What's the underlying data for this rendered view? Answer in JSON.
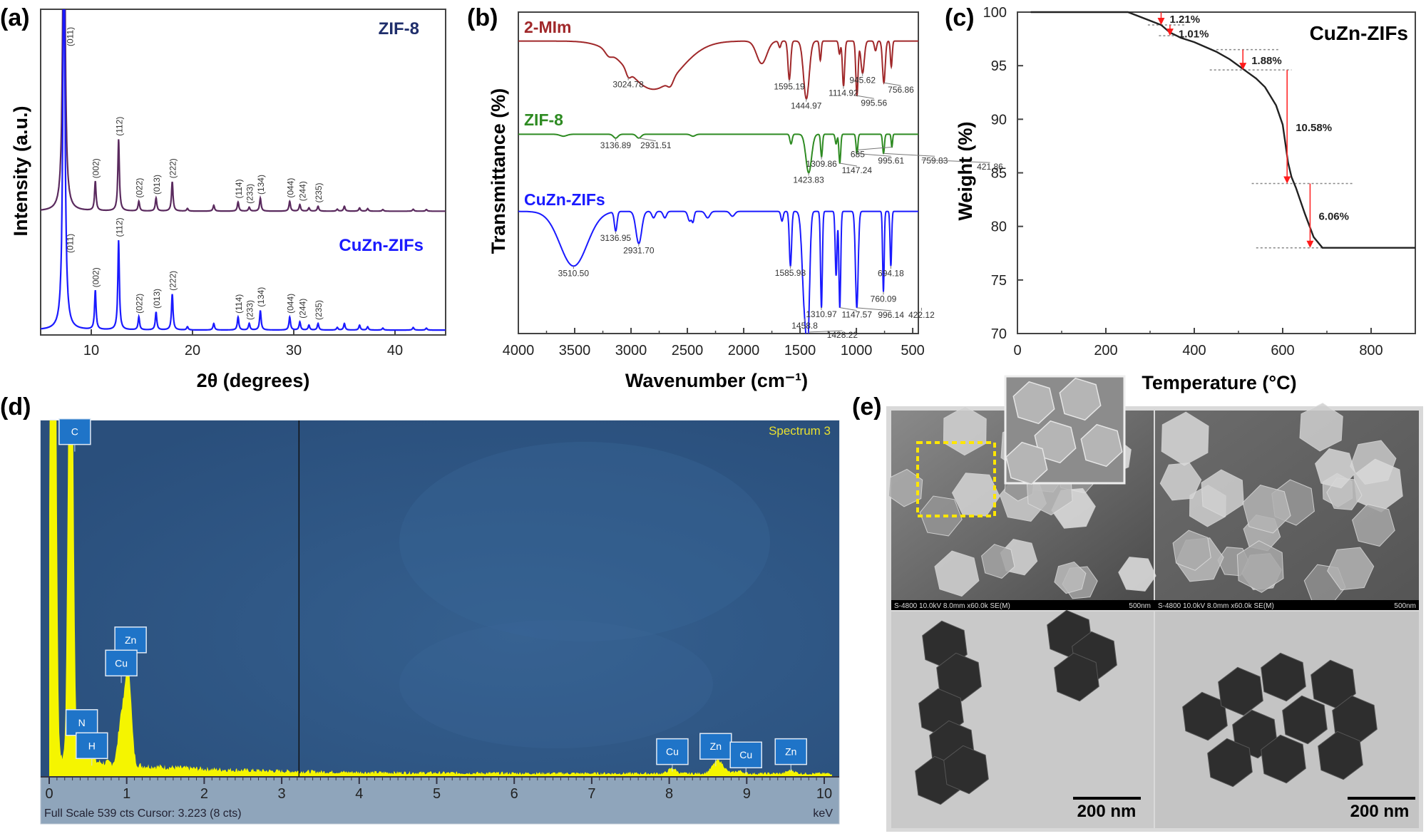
{
  "panels": {
    "a": "(a)",
    "b": "(b)",
    "c": "(c)",
    "d": "(d)",
    "e": "(e)"
  },
  "chart_data": [
    {
      "id": "a",
      "type": "line",
      "title": "",
      "xlabel": "2θ (degrees)",
      "ylabel": "Intensity (a.u.)",
      "xlim": [
        5,
        45
      ],
      "ylim": [
        0,
        100
      ],
      "xticks": [
        10,
        20,
        30,
        40
      ],
      "grid": false,
      "series": [
        {
          "name": "ZIF-8",
          "color": "#5a2a5e",
          "label_color": "#1f2e6b",
          "baseline": 38,
          "peaks": [
            [
              7.3,
              120,
              "(011)"
            ],
            [
              10.4,
              9,
              "(002)"
            ],
            [
              12.7,
              22,
              "(112)"
            ],
            [
              14.7,
              3,
              "(022)"
            ],
            [
              16.4,
              4,
              "(013)"
            ],
            [
              18.0,
              9,
              "(222)"
            ],
            [
              19.5,
              0.8,
              ""
            ],
            [
              22.1,
              1.8,
              ""
            ],
            [
              24.5,
              2.8,
              "(114)"
            ],
            [
              25.6,
              1.2,
              "(233)"
            ],
            [
              26.7,
              4,
              "(134)"
            ],
            [
              29.6,
              3,
              "(044)"
            ],
            [
              30.6,
              2,
              "(244)"
            ],
            [
              31.5,
              1,
              ""
            ],
            [
              32.4,
              1.5,
              "(235)"
            ],
            [
              34.3,
              0.6,
              ""
            ],
            [
              35.0,
              1.5,
              ""
            ],
            [
              36.5,
              1,
              ""
            ],
            [
              37.3,
              0.8,
              ""
            ],
            [
              38.8,
              0.5,
              ""
            ],
            [
              41.8,
              0.6,
              ""
            ],
            [
              43.1,
              0.5,
              ""
            ]
          ]
        },
        {
          "name": "CuZn-ZIFs",
          "color": "#1a1aff",
          "label_color": "#1a1aff",
          "baseline": 1.5,
          "peaks": [
            [
              7.3,
              120,
              "(011)"
            ],
            [
              10.4,
              12,
              "(002)"
            ],
            [
              12.7,
              27.5,
              "(112)"
            ],
            [
              14.7,
              4,
              "(022)"
            ],
            [
              16.4,
              5.5,
              "(013)"
            ],
            [
              18.0,
              11,
              "(222)"
            ],
            [
              19.5,
              1,
              ""
            ],
            [
              22.1,
              2,
              ""
            ],
            [
              24.5,
              4,
              "(114)"
            ],
            [
              25.6,
              2,
              "(233)"
            ],
            [
              26.7,
              6,
              "(134)"
            ],
            [
              29.6,
              4,
              "(044)"
            ],
            [
              30.6,
              2.5,
              "(244)"
            ],
            [
              31.5,
              1.5,
              ""
            ],
            [
              32.4,
              2,
              "(235)"
            ],
            [
              34.3,
              0.8,
              ""
            ],
            [
              35.0,
              2,
              ""
            ],
            [
              36.5,
              1.5,
              ""
            ],
            [
              37.3,
              1,
              ""
            ],
            [
              38.8,
              0.6,
              ""
            ],
            [
              41.8,
              0.8,
              ""
            ],
            [
              43.1,
              0.6,
              ""
            ]
          ]
        }
      ]
    },
    {
      "id": "b",
      "type": "line",
      "title": "",
      "xlabel": "Wavenumber (cm⁻¹)",
      "ylabel": "Transmittance (%)",
      "xlim": [
        4000,
        450
      ],
      "ylim": [
        0,
        100
      ],
      "xticks": [
        4000,
        3500,
        3000,
        2500,
        2000,
        1500,
        1000,
        500
      ],
      "grid": false,
      "series": [
        {
          "name": "2-MIm",
          "color": "#a0282a",
          "baseline": 91,
          "dips": [
            [
              2800,
              15,
              230
            ],
            [
              3024,
              2,
              20
            ],
            [
              3200,
              1.5,
              30
            ],
            [
              2650,
              2,
              25
            ],
            [
              1840,
              7,
              45
            ],
            [
              1680,
              2,
              10
            ],
            [
              1595,
              12,
              12
            ],
            [
              1444,
              18,
              25
            ],
            [
              1320,
              6,
              8
            ],
            [
              1150,
              4,
              8
            ],
            [
              1114,
              14,
              10
            ],
            [
              995,
              17,
              10
            ],
            [
              945,
              10,
              15
            ],
            [
              830,
              3,
              10
            ],
            [
              756,
              13,
              12
            ],
            [
              690,
              8,
              8
            ]
          ],
          "labels": [
            "3024.78",
            "1595.19",
            "1444.97",
            "1114.92",
            "995.56",
            "945.62",
            "756.86"
          ]
        },
        {
          "name": "ZIF-8",
          "color": "#2e8b22",
          "baseline": 62,
          "dips": [
            [
              3136,
              1.2,
              20
            ],
            [
              2931,
              1.2,
              20
            ],
            [
              3600,
              0.6,
              30
            ],
            [
              2450,
              0.6,
              20
            ],
            [
              1580,
              3,
              10
            ],
            [
              1423,
              12,
              25
            ],
            [
              1309,
              7,
              8
            ],
            [
              1180,
              3,
              8
            ],
            [
              1147,
              9,
              8
            ],
            [
              995,
              6,
              8
            ],
            [
              759,
              6,
              8
            ],
            [
              685,
              4,
              6
            ],
            [
              421,
              8,
              6
            ]
          ],
          "labels": [
            "3136.89",
            "2931.51",
            "1423.83",
            "1309.86",
            "1147.24",
            "995.61",
            "759.83",
            "685",
            "421.86"
          ]
        },
        {
          "name": "CuZn-ZIFs",
          "color": "#1a1aff",
          "baseline": 38,
          "dips": [
            [
              3510,
              17,
              120
            ],
            [
              3136,
              6,
              12
            ],
            [
              2931,
              10,
              25
            ],
            [
              2800,
              2,
              15
            ],
            [
              2700,
              2,
              15
            ],
            [
              2480,
              3,
              15
            ],
            [
              2450,
              3,
              10
            ],
            [
              2320,
              2,
              20
            ],
            [
              2100,
              1.5,
              20
            ],
            [
              1660,
              3,
              10
            ],
            [
              1585,
              17,
              10
            ],
            [
              1458,
              30,
              22
            ],
            [
              1428,
              28,
              15
            ],
            [
              1310,
              30,
              8
            ],
            [
              1180,
              20,
              8
            ],
            [
              1147,
              30,
              8
            ],
            [
              996,
              30,
              12
            ],
            [
              760,
              25,
              7
            ],
            [
              694,
              17,
              7
            ],
            [
              422,
              30,
              4
            ]
          ],
          "labels": [
            "3510.50",
            "3136.95",
            "2931.70",
            "1585.98",
            "1458.8",
            "1428.22",
            "1310.97",
            "1147.57",
            "996.14",
            "760.09",
            "694.18",
            "422.12"
          ]
        }
      ]
    },
    {
      "id": "c",
      "type": "line",
      "title": "CuZn-ZIFs",
      "xlabel": "Temperature (°C)",
      "ylabel": "Weight (%)",
      "xlim": [
        0,
        900
      ],
      "ylim": [
        70,
        100
      ],
      "xticks": [
        0,
        200,
        400,
        600,
        800
      ],
      "yticks": [
        70,
        75,
        80,
        85,
        90,
        95,
        100
      ],
      "grid": false,
      "series": [
        {
          "name": "CuZn-ZIFs",
          "color": "#222222",
          "points": [
            [
              30,
              100
            ],
            [
              250,
              100
            ],
            [
              300,
              99.2
            ],
            [
              325,
              98.8
            ],
            [
              345,
              98.1
            ],
            [
              370,
              97.6
            ],
            [
              400,
              97.2
            ],
            [
              450,
              96.3
            ],
            [
              480,
              95.6
            ],
            [
              510,
              94.7
            ],
            [
              540,
              93.8
            ],
            [
              560,
              93
            ],
            [
              585,
              91.3
            ],
            [
              600,
              89.5
            ],
            [
              607,
              87.5
            ],
            [
              612,
              86
            ],
            [
              620,
              84.6
            ],
            [
              630,
              83.6
            ],
            [
              650,
              81.2
            ],
            [
              670,
              79
            ],
            [
              690,
              78
            ],
            [
              900,
              78
            ]
          ]
        }
      ],
      "annotations": [
        {
          "label": "1.21%",
          "x": 325,
          "from": 100,
          "to": 98.8
        },
        {
          "label": "1.01%",
          "x": 345,
          "from": 98.8,
          "to": 97.8
        },
        {
          "label": "1.88%",
          "x": 510,
          "from": 96.5,
          "to": 94.6
        },
        {
          "label": "10.58%",
          "x": 610,
          "from": 94.6,
          "to": 84
        },
        {
          "label": "6.06%",
          "x": 662,
          "from": 84,
          "to": 78
        }
      ],
      "reference_lines": [
        [
          98.8,
          295,
          380
        ],
        [
          97.8,
          320,
          360
        ],
        [
          96.5,
          450,
          590
        ],
        [
          94.6,
          435,
          620
        ],
        [
          84,
          530,
          760
        ],
        [
          78,
          540,
          690
        ]
      ]
    },
    {
      "id": "d",
      "type": "area",
      "title": "Spectrum 3",
      "xlabel": "keV",
      "xlim": [
        0,
        10
      ],
      "ylim": [
        0,
        539
      ],
      "xticks": [
        0,
        1,
        2,
        3,
        4,
        5,
        6,
        7,
        8,
        9,
        10
      ],
      "footer": "Full Scale 539 cts Cursor: 3.223  (8 cts)",
      "cursor_kev": 3.223,
      "fill_color": "#f5f500",
      "background": "#2c5583",
      "peaks": [
        [
          0.05,
          1500,
          0.03
        ],
        [
          0.277,
          900,
          0.03
        ],
        [
          0.39,
          45,
          0.03
        ],
        [
          0.52,
          30,
          0.03
        ],
        [
          0.93,
          70,
          0.04
        ],
        [
          1.02,
          150,
          0.04
        ],
        [
          8.04,
          8,
          0.05
        ],
        [
          8.63,
          20,
          0.07
        ],
        [
          8.9,
          4,
          0.05
        ],
        [
          9.57,
          5,
          0.05
        ]
      ],
      "element_labels": [
        {
          "el": "C",
          "kev": 0.33,
          "cts": 520
        },
        {
          "el": "Zn",
          "kev": 1.05,
          "cts": 205
        },
        {
          "el": "Cu",
          "kev": 0.93,
          "cts": 170
        },
        {
          "el": "N",
          "kev": 0.42,
          "cts": 80
        },
        {
          "el": "H",
          "kev": 0.55,
          "cts": 45
        },
        {
          "el": "Cu",
          "kev": 8.04,
          "cts": 36
        },
        {
          "el": "Zn",
          "kev": 8.6,
          "cts": 44
        },
        {
          "el": "Cu",
          "kev": 8.99,
          "cts": 31
        },
        {
          "el": "Zn",
          "kev": 9.57,
          "cts": 36
        }
      ]
    }
  ],
  "micrographs": {
    "sem_info": "S-4800 10.0kV 8.0mm x60.0k SE(M)",
    "sem_scale": "500nm",
    "tem_scale": "200 nm"
  }
}
